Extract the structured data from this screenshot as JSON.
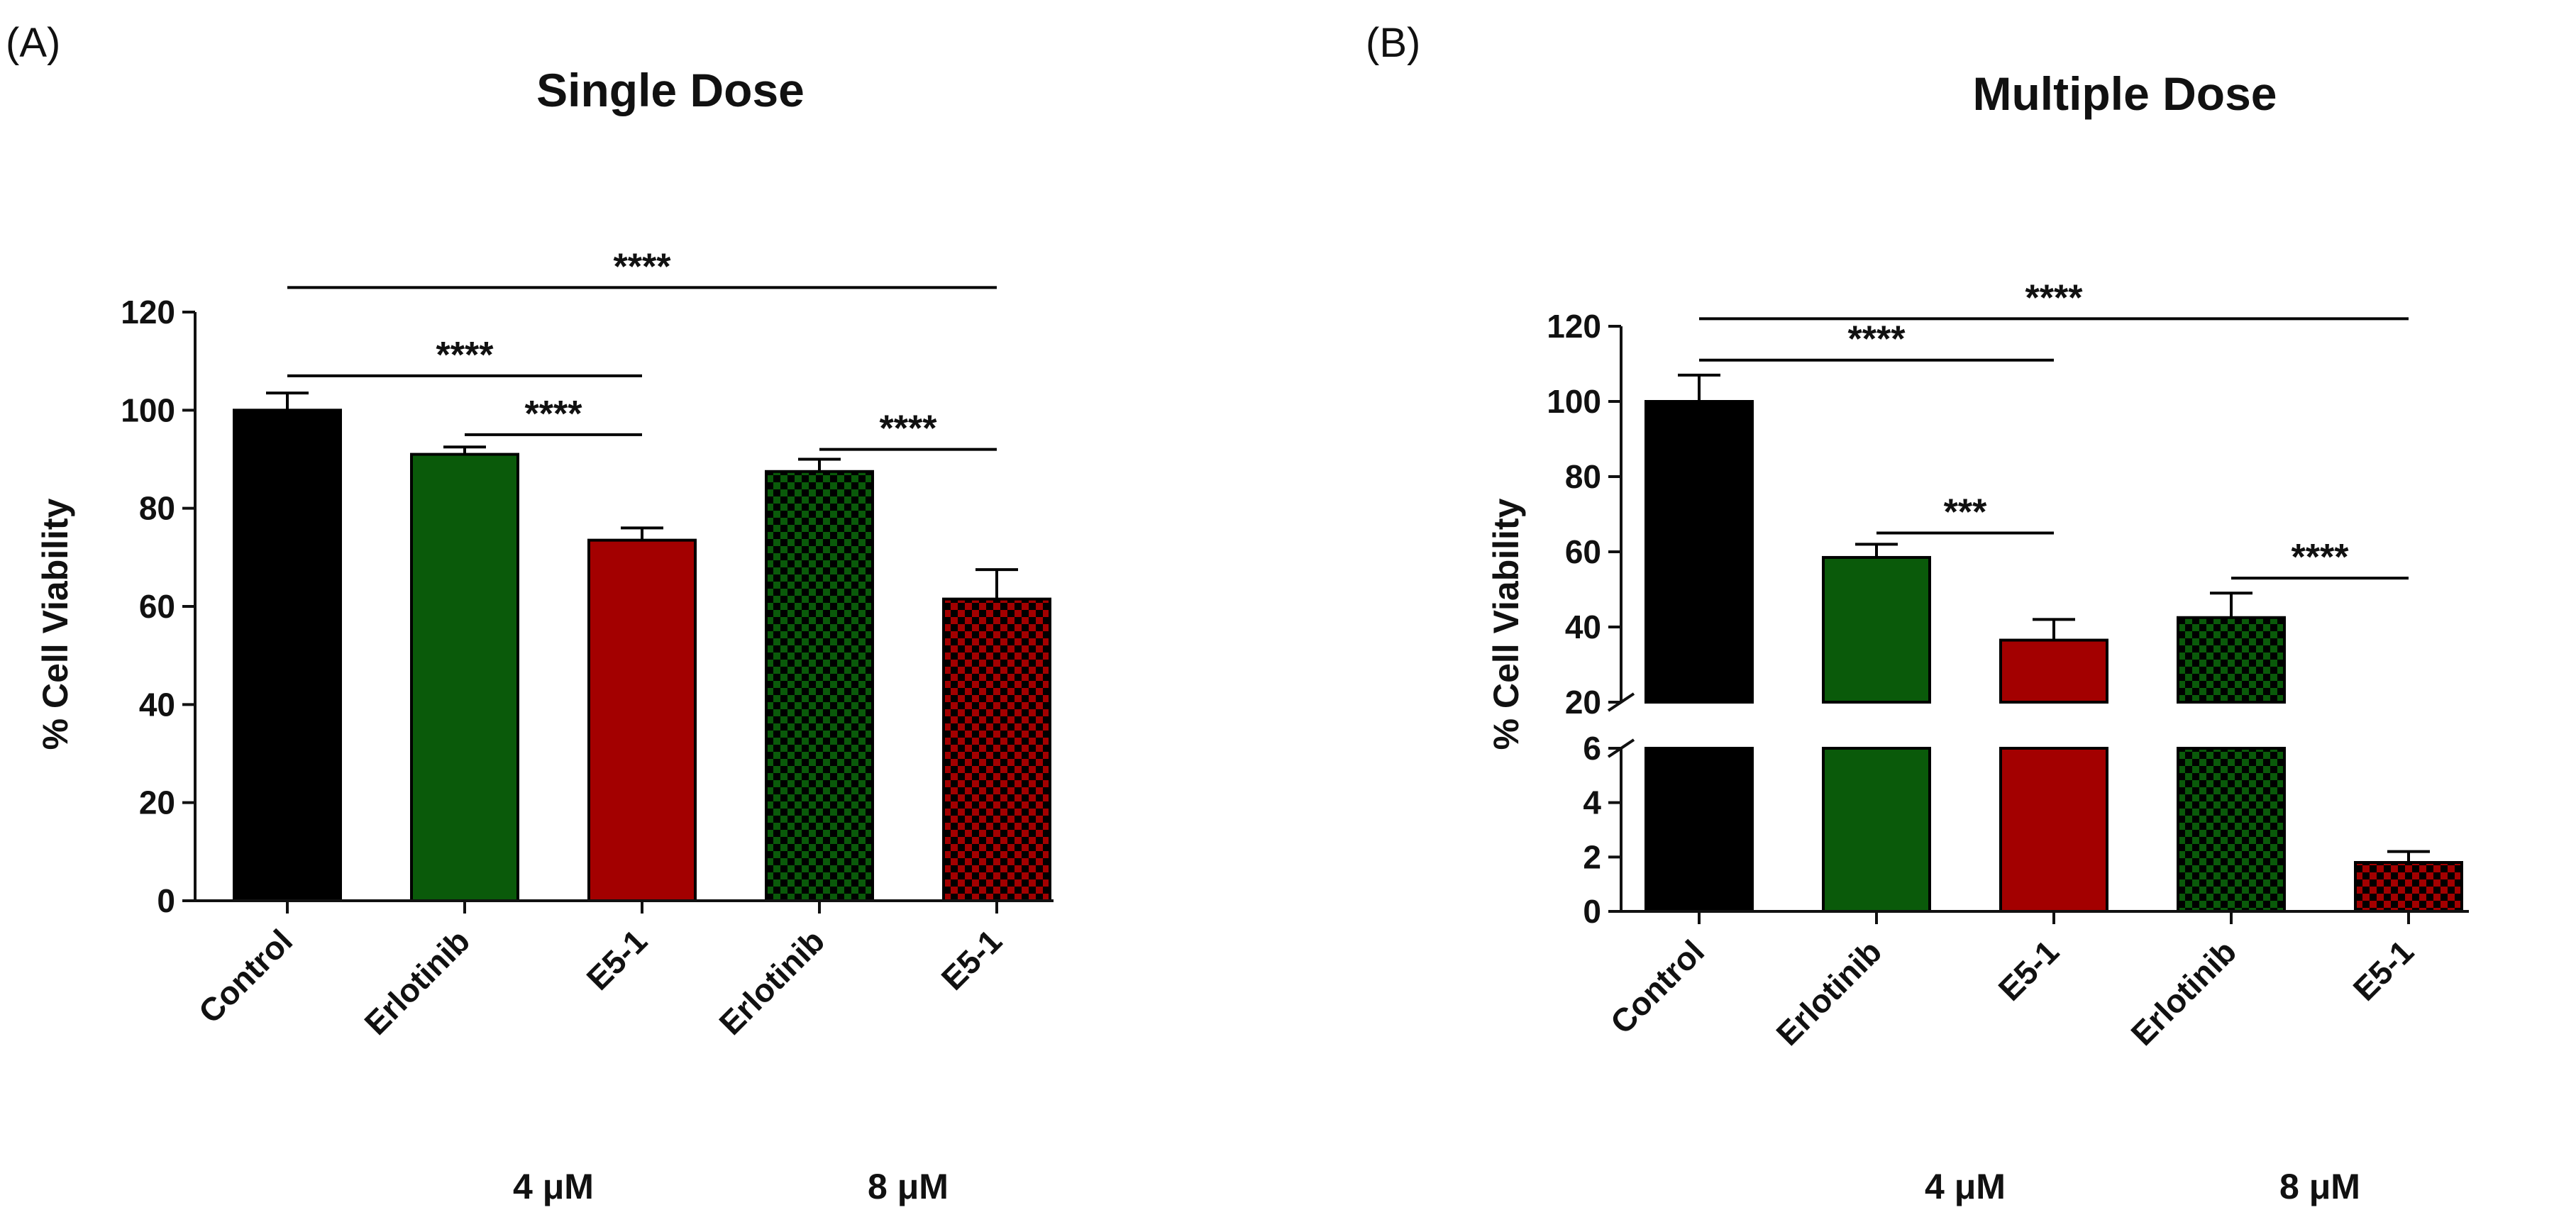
{
  "panels": [
    {
      "panel_label": "(A)",
      "title": "Single  Dose",
      "ylabel": "% Cell Viability",
      "yticks": [
        "0",
        "20",
        "40",
        "60",
        "80",
        "100",
        "120"
      ],
      "categories": [
        "Control",
        "Erlotinib",
        "E5-1",
        "Erlotinib",
        "E5-1"
      ],
      "group_labels": [
        {
          "text": "4 μM",
          "cats": [
            1,
            2
          ]
        },
        {
          "text": "8 μM",
          "cats": [
            3,
            4
          ]
        }
      ]
    },
    {
      "panel_label": "(B)",
      "title": "Multiple Dose",
      "ylabel": "% Cell Viability",
      "yticks_lower": [
        "0",
        "2",
        "4",
        "6"
      ],
      "yticks_upper": [
        "20",
        "40",
        "60",
        "80",
        "100",
        "120"
      ],
      "categories": [
        "Control",
        "Erlotinib",
        "E5-1",
        "Erlotinib",
        "E5-1"
      ],
      "group_labels": [
        {
          "text": "4 μM",
          "cats": [
            1,
            2
          ]
        },
        {
          "text": "8 μM",
          "cats": [
            3,
            4
          ]
        }
      ]
    }
  ],
  "chart_data": [
    {
      "type": "bar",
      "title": "Single  Dose",
      "xlabel": "",
      "ylabel": "% Cell Viability",
      "ylim": [
        0,
        120
      ],
      "categories": [
        "Control",
        "Erlotinib",
        "E5-1",
        "Erlotinib",
        "E5-1"
      ],
      "values": [
        100,
        91,
        73.5,
        87.5,
        61.5
      ],
      "errors": [
        3.5,
        1.5,
        2.5,
        2.5,
        6
      ],
      "fills": [
        "solid-black",
        "solid-green",
        "solid-red",
        "checker-green",
        "checker-red"
      ],
      "significance": [
        {
          "from": 0,
          "to": 4,
          "label": "****",
          "level": 125
        },
        {
          "from": 0,
          "to": 2,
          "label": "****",
          "level": 107
        },
        {
          "from": 1,
          "to": 2,
          "label": "****",
          "level": 95
        },
        {
          "from": 3,
          "to": 4,
          "label": "****",
          "level": 92
        }
      ]
    },
    {
      "type": "bar",
      "title": "Multiple Dose",
      "xlabel": "",
      "ylabel": "% Cell Viability",
      "ylim": [
        0,
        120
      ],
      "axis_break": [
        6,
        20
      ],
      "categories": [
        "Control",
        "Erlotinib",
        "E5-1",
        "Erlotinib",
        "E5-1"
      ],
      "values": [
        100,
        58.5,
        36.5,
        42.5,
        1.8
      ],
      "errors": [
        7,
        3.5,
        5.5,
        6.5,
        0.4
      ],
      "fills": [
        "solid-black",
        "solid-green",
        "solid-red",
        "checker-green",
        "checker-red"
      ],
      "significance": [
        {
          "from": 0,
          "to": 4,
          "label": "****",
          "level": 122
        },
        {
          "from": 0,
          "to": 2,
          "label": "****",
          "level": 111
        },
        {
          "from": 1,
          "to": 2,
          "label": "***",
          "level": 65
        },
        {
          "from": 3,
          "to": 4,
          "label": "****",
          "level": 53
        }
      ]
    }
  ],
  "colors": {
    "black": "#000000",
    "green": "#0a5a0a",
    "red": "#a30000",
    "axis": "#111111"
  }
}
